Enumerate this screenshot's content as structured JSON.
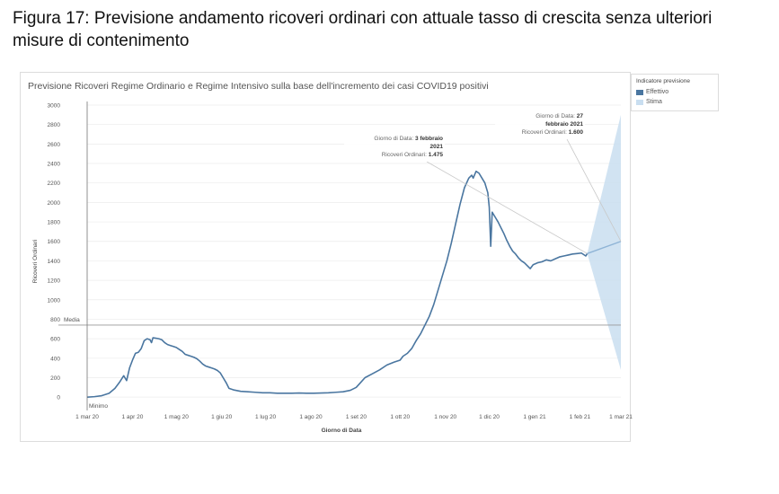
{
  "figure_title": "Figura 17: Previsione andamento ricoveri ordinari con attuale tasso di crescita senza ulteriori misure di contenimento",
  "legend": {
    "title": "Indicatore previsione",
    "items": [
      {
        "label": "Effettivo",
        "color": "#4a76a0"
      },
      {
        "label": "Stima",
        "color": "#c9def0"
      }
    ]
  },
  "reference_lines": {
    "mean_label": "Media",
    "mean_value": 740,
    "min_label": "Minimo"
  },
  "tooltips": [
    {
      "lines": [
        [
          "Giorno di Data: ",
          "3 febbraio"
        ],
        [
          "",
          "2021"
        ],
        [
          "Ricoveri Ordinari: ",
          "1.475"
        ]
      ]
    },
    {
      "lines": [
        [
          "Giorno di Data: ",
          "27"
        ],
        [
          "",
          "febbraio 2021"
        ],
        [
          "Ricoveri Ordinari: ",
          "1.600"
        ]
      ]
    }
  ],
  "chart_data": {
    "type": "line",
    "title": "Previsione Ricoveri Regime Ordinario e Regime Intensivo sulla base dell'incremento dei casi COVID19 positivi",
    "xlabel": "Giorno di Data",
    "ylabel": "Ricoveri Ordinari",
    "ylim": [
      -100,
      3000
    ],
    "y_ticks": [
      0,
      200,
      400,
      600,
      800,
      1000,
      1200,
      1400,
      1600,
      1800,
      2000,
      2200,
      2400,
      2600,
      2800,
      3000
    ],
    "x_ticks": [
      {
        "day": 0,
        "label": "1 mar 20"
      },
      {
        "day": 31,
        "label": "1 apr 20"
      },
      {
        "day": 61,
        "label": "1 mag 20"
      },
      {
        "day": 92,
        "label": "1 giu 20"
      },
      {
        "day": 122,
        "label": "1 lug 20"
      },
      {
        "day": 153,
        "label": "1 ago 20"
      },
      {
        "day": 184,
        "label": "1 set 20"
      },
      {
        "day": 214,
        "label": "1 ott 20"
      },
      {
        "day": 245,
        "label": "1 nov 20"
      },
      {
        "day": 275,
        "label": "1 dic 20"
      },
      {
        "day": 306,
        "label": "1 gen 21"
      },
      {
        "day": 337,
        "label": "1 feb 21"
      },
      {
        "day": 365,
        "label": "1 mar 21"
      }
    ],
    "series": [
      {
        "name": "Effettivo",
        "color": "#4a76a0",
        "points": [
          [
            0,
            0
          ],
          [
            5,
            5
          ],
          [
            10,
            15
          ],
          [
            15,
            40
          ],
          [
            19,
            90
          ],
          [
            22,
            150
          ],
          [
            25,
            220
          ],
          [
            27,
            170
          ],
          [
            29,
            300
          ],
          [
            31,
            380
          ],
          [
            33,
            450
          ],
          [
            35,
            460
          ],
          [
            37,
            500
          ],
          [
            39,
            580
          ],
          [
            41,
            600
          ],
          [
            43,
            590
          ],
          [
            44,
            560
          ],
          [
            45,
            610
          ],
          [
            47,
            605
          ],
          [
            49,
            600
          ],
          [
            51,
            590
          ],
          [
            53,
            560
          ],
          [
            55,
            540
          ],
          [
            57,
            530
          ],
          [
            59,
            520
          ],
          [
            61,
            510
          ],
          [
            63,
            490
          ],
          [
            65,
            470
          ],
          [
            67,
            440
          ],
          [
            69,
            430
          ],
          [
            71,
            420
          ],
          [
            73,
            410
          ],
          [
            75,
            395
          ],
          [
            77,
            370
          ],
          [
            79,
            340
          ],
          [
            81,
            320
          ],
          [
            83,
            310
          ],
          [
            85,
            300
          ],
          [
            87,
            290
          ],
          [
            89,
            275
          ],
          [
            91,
            250
          ],
          [
            93,
            200
          ],
          [
            95,
            150
          ],
          [
            97,
            90
          ],
          [
            100,
            75
          ],
          [
            105,
            60
          ],
          [
            110,
            55
          ],
          [
            115,
            50
          ],
          [
            120,
            45
          ],
          [
            125,
            45
          ],
          [
            130,
            40
          ],
          [
            135,
            40
          ],
          [
            140,
            40
          ],
          [
            145,
            42
          ],
          [
            150,
            40
          ],
          [
            155,
            40
          ],
          [
            160,
            42
          ],
          [
            165,
            45
          ],
          [
            170,
            50
          ],
          [
            175,
            55
          ],
          [
            180,
            70
          ],
          [
            184,
            100
          ],
          [
            187,
            150
          ],
          [
            190,
            200
          ],
          [
            195,
            240
          ],
          [
            200,
            280
          ],
          [
            205,
            330
          ],
          [
            210,
            360
          ],
          [
            214,
            380
          ],
          [
            216,
            420
          ],
          [
            219,
            450
          ],
          [
            222,
            500
          ],
          [
            225,
            580
          ],
          [
            228,
            650
          ],
          [
            231,
            740
          ],
          [
            234,
            830
          ],
          [
            237,
            950
          ],
          [
            240,
            1100
          ],
          [
            243,
            1250
          ],
          [
            246,
            1400
          ],
          [
            249,
            1580
          ],
          [
            252,
            1780
          ],
          [
            255,
            1980
          ],
          [
            258,
            2150
          ],
          [
            261,
            2250
          ],
          [
            263,
            2280
          ],
          [
            264,
            2250
          ],
          [
            266,
            2320
          ],
          [
            268,
            2300
          ],
          [
            270,
            2250
          ],
          [
            272,
            2200
          ],
          [
            274,
            2100
          ],
          [
            275,
            1950
          ],
          [
            276,
            1550
          ],
          [
            277,
            1900
          ],
          [
            279,
            1850
          ],
          [
            281,
            1800
          ],
          [
            283,
            1740
          ],
          [
            285,
            1680
          ],
          [
            287,
            1610
          ],
          [
            289,
            1550
          ],
          [
            291,
            1500
          ],
          [
            293,
            1470
          ],
          [
            295,
            1430
          ],
          [
            297,
            1400
          ],
          [
            299,
            1380
          ],
          [
            301,
            1350
          ],
          [
            303,
            1320
          ],
          [
            305,
            1360
          ],
          [
            308,
            1380
          ],
          [
            311,
            1390
          ],
          [
            314,
            1410
          ],
          [
            317,
            1400
          ],
          [
            320,
            1420
          ],
          [
            323,
            1440
          ],
          [
            326,
            1450
          ],
          [
            329,
            1460
          ],
          [
            332,
            1470
          ],
          [
            335,
            1475
          ],
          [
            338,
            1480
          ],
          [
            341,
            1450
          ],
          [
            342,
            1475
          ]
        ]
      },
      {
        "name": "Stima",
        "color": "#4a76a0",
        "points": [
          [
            342,
            1475
          ],
          [
            365,
            1600
          ]
        ],
        "band_upper": [
          [
            342,
            1475
          ],
          [
            365,
            2900
          ]
        ],
        "band_lower": [
          [
            342,
            1475
          ],
          [
            365,
            280
          ]
        ]
      }
    ]
  }
}
